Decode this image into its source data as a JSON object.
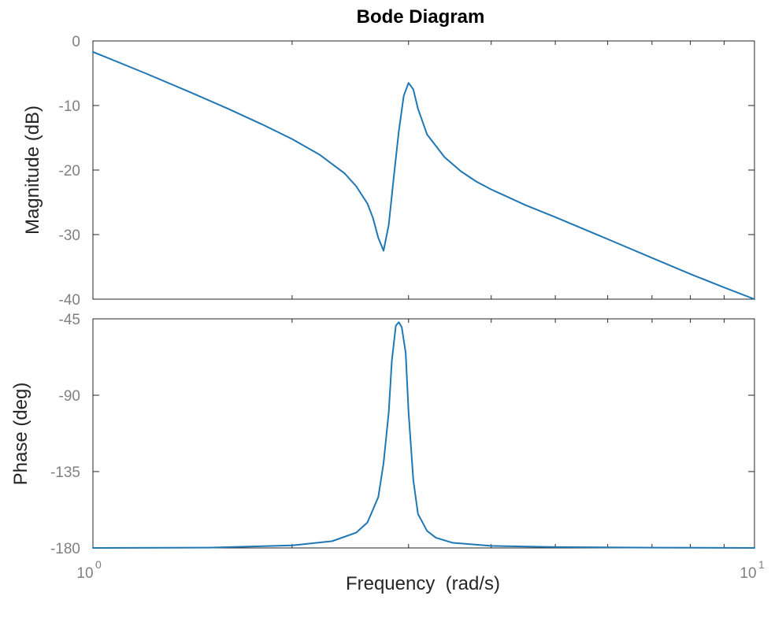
{
  "chart_data": {
    "type": "line",
    "title": "Bode Diagram",
    "xlabel": "Frequency  (rad/s)",
    "x_scale": "log",
    "xlim": [
      1,
      10
    ],
    "x_ticks": [
      {
        "value": 1,
        "base": "10",
        "exp": "0"
      },
      {
        "value": 10,
        "base": "10",
        "exp": "1"
      }
    ],
    "series_color": "#1f77b4",
    "panels": [
      {
        "name": "magnitude",
        "ylabel": "Magnitude (dB)",
        "ylim": [
          -40,
          0
        ],
        "y_ticks": [
          "0",
          "-10",
          "-20",
          "-30",
          "-40"
        ],
        "series": [
          {
            "x": [
              1.0,
              1.2,
              1.4,
              1.6,
              1.8,
              2.0,
              2.2,
              2.4,
              2.5,
              2.6,
              2.65,
              2.7,
              2.75,
              2.8,
              2.85,
              2.9,
              2.95,
              3.0,
              3.05,
              3.1,
              3.2,
              3.4,
              3.6,
              3.8,
              4.0,
              4.5,
              5.0,
              6.0,
              7.0,
              8.0,
              9.0,
              10.0
            ],
            "y": [
              -1.7,
              -5.0,
              -7.9,
              -10.5,
              -12.9,
              -15.2,
              -17.6,
              -20.5,
              -22.5,
              -25.2,
              -27.4,
              -30.5,
              -32.5,
              -28.5,
              -21.0,
              -14.0,
              -8.5,
              -6.5,
              -7.5,
              -10.5,
              -14.5,
              -18.0,
              -20.2,
              -21.8,
              -23.0,
              -25.4,
              -27.3,
              -30.7,
              -33.6,
              -36.1,
              -38.2,
              -40.0
            ]
          }
        ]
      },
      {
        "name": "phase",
        "ylabel": "Phase (deg)",
        "ylim": [
          -180,
          -45
        ],
        "y_ticks": [
          "-45",
          "-90",
          "-135",
          "-180"
        ],
        "series": [
          {
            "x": [
              1.0,
              1.5,
              2.0,
              2.3,
              2.5,
              2.6,
              2.7,
              2.75,
              2.8,
              2.83,
              2.87,
              2.9,
              2.93,
              2.97,
              3.0,
              3.05,
              3.1,
              3.2,
              3.3,
              3.5,
              4.0,
              5.0,
              7.0,
              10.0
            ],
            "y": [
              -180,
              -179.8,
              -178.5,
              -176,
              -171,
              -165,
              -150,
              -130,
              -100,
              -70,
              -49,
              -47,
              -50,
              -65,
              -100,
              -140,
              -160,
              -170,
              -174,
              -177,
              -178.8,
              -179.5,
              -179.8,
              -180
            ]
          }
        ]
      }
    ]
  }
}
